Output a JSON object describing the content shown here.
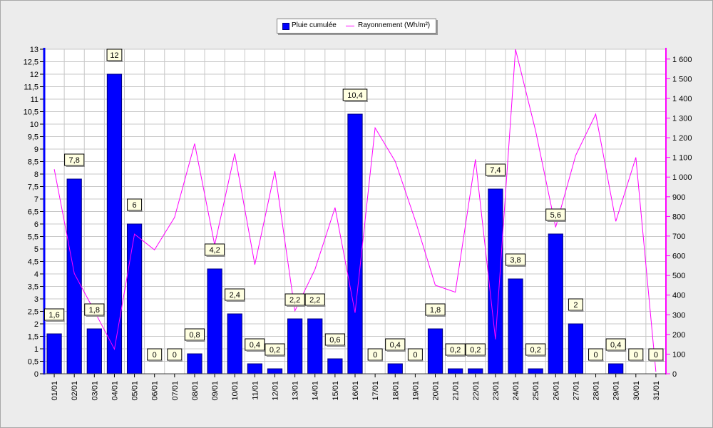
{
  "chart_data": {
    "type": "bar",
    "categories": [
      "01/01",
      "02/01",
      "03/01",
      "04/01",
      "05/01",
      "06/01",
      "07/01",
      "08/01",
      "09/01",
      "10/01",
      "11/01",
      "12/01",
      "13/01",
      "14/01",
      "15/01",
      "16/01",
      "17/01",
      "18/01",
      "19/01",
      "20/01",
      "21/01",
      "22/01",
      "23/01",
      "24/01",
      "25/01",
      "26/01",
      "27/01",
      "28/01",
      "29/01",
      "30/01",
      "31/01"
    ],
    "series": [
      {
        "name": "Pluie cumulée",
        "type": "bar",
        "axis": "left",
        "color": "#0000ff",
        "values": [
          1.6,
          7.8,
          1.8,
          12,
          6,
          0,
          0,
          0.8,
          4.2,
          2.4,
          0.4,
          0.2,
          2.2,
          2.2,
          0.6,
          10.4,
          0,
          0.4,
          0,
          1.8,
          0.2,
          0.2,
          7.4,
          3.8,
          0.2,
          5.6,
          2,
          0,
          0.4,
          0,
          0
        ],
        "labels": [
          "1,6",
          "7,8",
          "1,8",
          "12",
          "6",
          "0",
          "0",
          "0,8",
          "4,2",
          "2,4",
          "0,4",
          "0,2",
          "2,2",
          "2,2",
          "0,6",
          "10,4",
          "0",
          "0,4",
          "0",
          "1,8",
          "0,2",
          "0,2",
          "7,4",
          "3,8",
          "0,2",
          "5,6",
          "2",
          "0",
          "0,4",
          "0",
          "0"
        ]
      },
      {
        "name": "Rayonnement (Wh/m²)",
        "type": "line",
        "axis": "right",
        "color": "#ff00ff",
        "values": [
          1040,
          510,
          320,
          125,
          710,
          630,
          795,
          1170,
          655,
          1120,
          555,
          1030,
          320,
          530,
          845,
          310,
          1250,
          1080,
          780,
          450,
          415,
          1090,
          175,
          1650,
          1235,
          745,
          1110,
          1320,
          775,
          1100,
          10
        ]
      }
    ],
    "y_left": {
      "min": 0,
      "max": 13,
      "ticks": [
        0,
        0.5,
        1,
        1.5,
        2,
        2.5,
        3,
        3.5,
        4,
        4.5,
        5,
        5.5,
        6,
        6.5,
        7,
        7.5,
        8,
        8.5,
        9,
        9.5,
        10,
        10.5,
        11,
        11.5,
        12,
        12.5,
        13
      ],
      "tick_labels": [
        "0",
        "0,5",
        "1",
        "1,5",
        "2",
        "2,5",
        "3",
        "3,5",
        "4",
        "4,5",
        "5",
        "5,5",
        "6",
        "6,5",
        "7",
        "7,5",
        "8",
        "8,5",
        "9",
        "9,5",
        "10",
        "10,5",
        "11",
        "11,5",
        "12",
        "12,5",
        "13"
      ]
    },
    "y_right": {
      "min": 0,
      "max": 1650,
      "ticks": [
        0,
        100,
        200,
        300,
        400,
        500,
        600,
        700,
        800,
        900,
        1000,
        1100,
        1200,
        1300,
        1400,
        1500,
        1600
      ],
      "tick_labels": [
        "0",
        "100",
        "200",
        "300",
        "400",
        "500",
        "600",
        "700",
        "800",
        "900",
        "1 000",
        "1 100",
        "1 200",
        "1 300",
        "1 400",
        "1 500",
        "1 600"
      ]
    },
    "grid": true,
    "legend_position": "top-center",
    "title": "",
    "xlabel": "",
    "ylabel": ""
  },
  "colors": {
    "bar_fill": "#0000ff",
    "bar_edge": "#000080",
    "line": "#ff00ff",
    "left_axis": "#0000ff",
    "right_axis": "#ff00ff",
    "plot_bg": "#ffffff",
    "grid": "#c8c8c8",
    "label_bg": "#ffffe1"
  }
}
